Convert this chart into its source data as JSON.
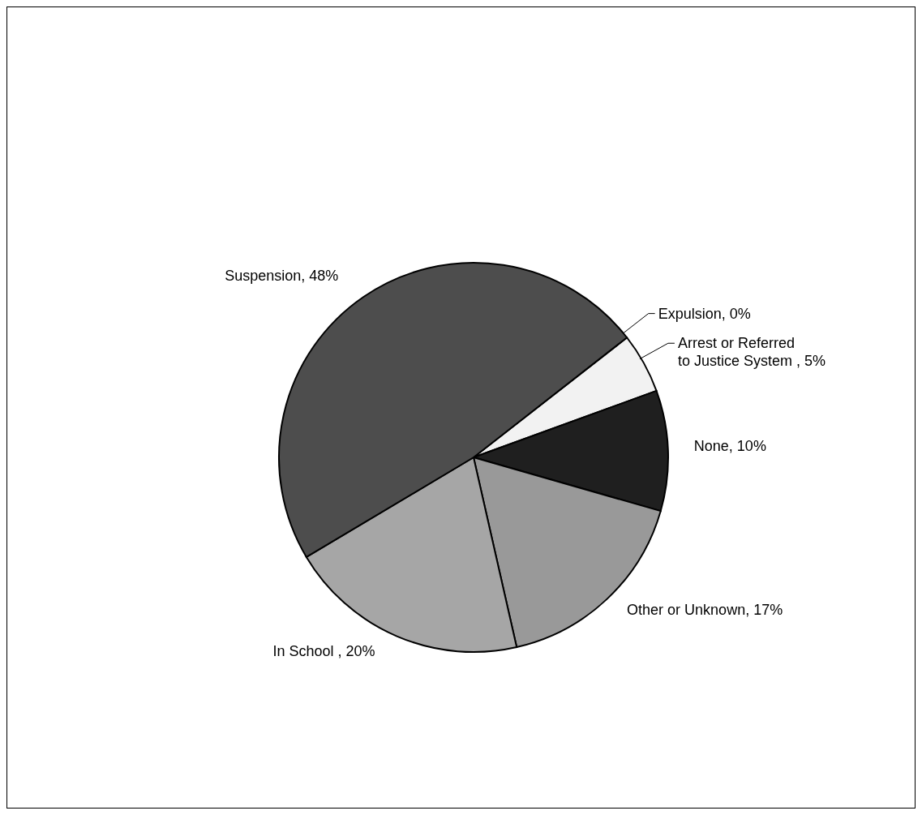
{
  "chart_data": {
    "type": "pie",
    "categories": [
      "Expulsion",
      "Arrest or Referred to Justice System ",
      "None",
      "Other or Unknown",
      "In School ",
      "Suspension"
    ],
    "values": [
      0,
      5,
      10,
      17,
      20,
      48
    ],
    "value_labels": [
      "0%",
      "5%",
      "10%",
      "17%",
      "20%",
      "48%"
    ],
    "colors": [
      "#ffffff",
      "#f2f2f2",
      "#1f1f1f",
      "#999999",
      "#a6a6a6",
      "#4d4d4d"
    ],
    "data_labels": true
  }
}
